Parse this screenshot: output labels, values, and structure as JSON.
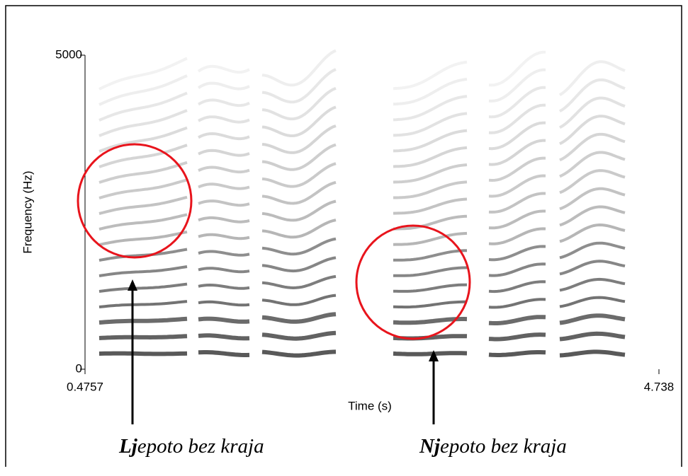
{
  "chart_data": {
    "type": "spectrogram",
    "ylabel": "Frequency (Hz)",
    "xlabel": "Time (s)",
    "ylim": [
      0,
      5000
    ],
    "yticks": [
      0,
      5000
    ],
    "xlim": [
      0.4757,
      4.738
    ],
    "xticks": [
      0.4757,
      4.738
    ],
    "annotations": [
      {
        "bold": "Lj",
        "text": "epoto bez kraja"
      },
      {
        "bold": "Nj",
        "text": "epoto bez kraja"
      }
    ],
    "highlight_color": "#e8141c"
  }
}
